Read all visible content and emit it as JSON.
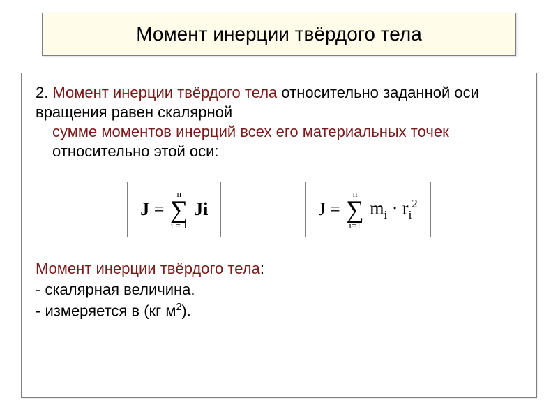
{
  "title": "Момент инерции твёрдого тела",
  "paragraph": {
    "lead": "2. ",
    "term": "Момент инерции твёрдого тела",
    "mid": " относительно заданной оси вращения равен скалярной ",
    "sum_phrase": "сумме моментов инерций всех его материальных  точек",
    "tail": " относительно этой оси:"
  },
  "formula1": {
    "lhs": "J",
    "eq": " = ",
    "sum_top": "n",
    "sum_bot": "i = 1",
    "rhs": "Ji"
  },
  "formula2": {
    "lhs": "J",
    "eq": " = ",
    "sum_top": "n",
    "sum_bot": "i=1",
    "rhs_m": "m",
    "rhs_i1": "i",
    "rhs_dot": " · ",
    "rhs_r": "r",
    "rhs_i2": "i",
    "rhs_sq": "2"
  },
  "subheading": {
    "term": "Момент инерции твёрдого тела",
    "colon": ":"
  },
  "bullet1": "- скалярная величина.",
  "bullet2_a": "- измеряется в (кг м",
  "bullet2_sup": "2",
  "bullet2_b": ")."
}
